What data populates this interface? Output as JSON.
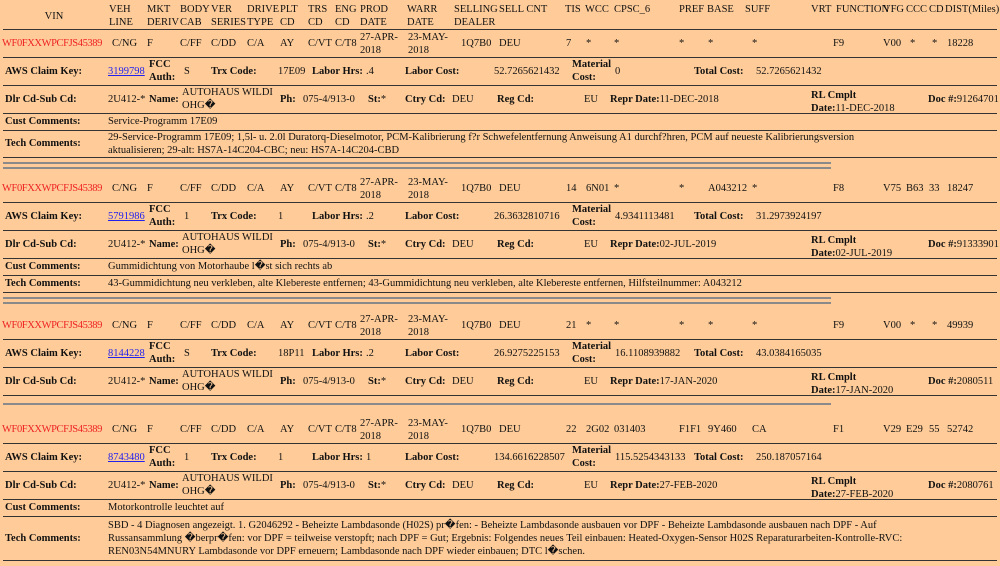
{
  "header": {
    "vin": "VIN",
    "veh_line": "VEH LINE",
    "mkt_deriv": "MKT DERIV",
    "body_cab": "BODY CAB",
    "ver_series": "VER SERIES",
    "drive_type": "DRIVE TYPE",
    "plt_cd": "PLT CD",
    "trs_cd": "TRS CD",
    "eng_cd": "ENG CD",
    "prod_date": "PROD DATE",
    "warr_date": "WARR DATE",
    "selling_dealer": "SELLING DEALER",
    "sell_cnt": "SELL CNT",
    "tis": "TIS",
    "wcc": "WCC",
    "cpsc": "CPSC_6",
    "pref": "PREF",
    "base": "BASE",
    "suff": "SUFF",
    "vrt": "VRT",
    "function": "FUNCTION",
    "vfg": "VFG",
    "ccc": "CCC",
    "cd": "CD",
    "dist": "DIST(Miles)"
  },
  "labels": {
    "aws_claim_key": "AWS Claim Key:",
    "fcc_auth": "FCC Auth:",
    "trx_code": "Trx Code:",
    "labor_hrs": "Labor Hrs:",
    "labor_cost": "Labor Cost:",
    "material_cost": "Material Cost:",
    "total_cost": "Total Cost:",
    "dlr_cd_sub_cd": "Dlr Cd-Sub Cd:",
    "name": "Name:",
    "ph": "Ph:",
    "st": "St:",
    "ctry_cd": "Ctry Cd:",
    "reg_cd": "Reg Cd:",
    "repr_date": "Repr Date:",
    "rl_cmplt_date": "RL Cmplt Date:",
    "doc": "Doc #:",
    "cust_comments": "Cust Comments:",
    "tech_comments": "Tech Comments:"
  },
  "colors": {
    "background": "#FFCC99",
    "vin": "#EE2222",
    "link": "#2222EE"
  },
  "records": [
    {
      "vin": "WF0FXXWPCFJS45389",
      "veh_line": "C/NG",
      "mkt_deriv": "F",
      "body_cab": "C/FF",
      "ver_series": "C/DD",
      "drive_type": "C/A",
      "plt_cd": "AY",
      "trs_cd": "C/VT",
      "eng_cd": "C/T8",
      "prod_date": "27-APR-2018",
      "warr_date": "23-MAY-2018",
      "selling_dealer": "1Q7B0",
      "sell_cnt": "DEU",
      "tis": "7",
      "wcc": "*",
      "cpsc": "*",
      "pref": "*",
      "base": "*",
      "suff": "*",
      "vrt": "F9",
      "function": "",
      "vfg": "V00",
      "ccc": "*",
      "cd": "*",
      "dist": "18228",
      "claim_key": "3199798",
      "fcc_auth": "S",
      "trx_code": "17E09",
      "labor_hrs": ".4",
      "labor_cost": "52.7265621432",
      "material_cost": "0",
      "total_cost": "52.7265621432",
      "dlr_cd": "2U412-*",
      "name": "AUTOHAUS WILDI OHG�",
      "ph": "075-4/913-0",
      "st": "*",
      "ctry_cd": "DEU",
      "reg_cd": "EU",
      "repr_date": "11-DEC-2018",
      "rl_cmplt_date": "11-DEC-2018",
      "doc": "91264701",
      "cust_comments": "Service-Programm 17E09",
      "tech_comments": "29-Service-Programm 17E09; 1,5l- u. 2.0l Duratorq-Dieselmotor, PCM-Kalibrierung f?r Schwefelentfernung Anweisung A1 durchf?hren, PCM auf neueste Kalibrierungsversion aktualisieren; 29-alt: HS7A-14C204-CBC; neu: HS7A-14C204-CBD"
    },
    {
      "vin": "WF0FXXWPCFJS45389",
      "veh_line": "C/NG",
      "mkt_deriv": "F",
      "body_cab": "C/FF",
      "ver_series": "C/DD",
      "drive_type": "C/A",
      "plt_cd": "AY",
      "trs_cd": "C/VT",
      "eng_cd": "C/T8",
      "prod_date": "27-APR-2018",
      "warr_date": "23-MAY-2018",
      "selling_dealer": "1Q7B0",
      "sell_cnt": "DEU",
      "tis": "14",
      "wcc": "6N01",
      "cpsc": "*",
      "pref": "*",
      "base": "A043212",
      "suff": "*",
      "vrt": "F8",
      "function": "",
      "vfg": "V75",
      "ccc": "B63",
      "cd": "33",
      "dist": "18247",
      "claim_key": "5791986",
      "fcc_auth": "1",
      "trx_code": "1",
      "labor_hrs": ".2",
      "labor_cost": "26.3632810716",
      "material_cost": "4.9341113481",
      "total_cost": "31.2973924197",
      "dlr_cd": "2U412-*",
      "name": "AUTOHAUS WILDI OHG�",
      "ph": "075-4/913-0",
      "st": "*",
      "ctry_cd": "DEU",
      "reg_cd": "EU",
      "repr_date": "02-JUL-2019",
      "rl_cmplt_date": "02-JUL-2019",
      "doc": "91333901",
      "cust_comments": "Gummidichtung von Motorhaube l�st sich rechts ab",
      "tech_comments": "43-Gummidichtung neu verkleben, alte Klebereste entfernen; 43-Gummidichtung neu verkleben, alte Klebereste entfernen, Hilfsteilnummer: A043212"
    },
    {
      "vin": "WF0FXXWPCFJS45389",
      "veh_line": "C/NG",
      "mkt_deriv": "F",
      "body_cab": "C/FF",
      "ver_series": "C/DD",
      "drive_type": "C/A",
      "plt_cd": "AY",
      "trs_cd": "C/VT",
      "eng_cd": "C/T8",
      "prod_date": "27-APR-2018",
      "warr_date": "23-MAY-2018",
      "selling_dealer": "1Q7B0",
      "sell_cnt": "DEU",
      "tis": "21",
      "wcc": "*",
      "cpsc": "*",
      "pref": "*",
      "base": "*",
      "suff": "*",
      "vrt": "F9",
      "function": "",
      "vfg": "V00",
      "ccc": "*",
      "cd": "*",
      "dist": "49939",
      "claim_key": "8144228",
      "fcc_auth": "S",
      "trx_code": "18P11",
      "labor_hrs": ".2",
      "labor_cost": "26.9275225153",
      "material_cost": "16.1108939882",
      "total_cost": "43.0384165035",
      "dlr_cd": "2U412-*",
      "name": "AUTOHAUS WILDI OHG�",
      "ph": "075-4/913-0",
      "st": "*",
      "ctry_cd": "DEU",
      "reg_cd": "EU",
      "repr_date": "17-JAN-2020",
      "rl_cmplt_date": "17-JAN-2020",
      "doc": "2080511"
    },
    {
      "vin": "WF0FXXWPCFJS45389",
      "veh_line": "C/NG",
      "mkt_deriv": "F",
      "body_cab": "C/FF",
      "ver_series": "C/DD",
      "drive_type": "C/A",
      "plt_cd": "AY",
      "trs_cd": "C/VT",
      "eng_cd": "C/T8",
      "prod_date": "27-APR-2018",
      "warr_date": "23-MAY-2018",
      "selling_dealer": "1Q7B0",
      "sell_cnt": "DEU",
      "tis": "22",
      "wcc": "2G02",
      "cpsc": "031403",
      "pref": "F1F1",
      "base": "9Y460",
      "suff": "CA",
      "vrt": "F1",
      "function": "",
      "vfg": "V29",
      "ccc": "E29",
      "cd": "55",
      "dist": "52742",
      "claim_key": "8743480",
      "fcc_auth": "1",
      "trx_code": "1",
      "labor_hrs": "1",
      "labor_cost": "134.6616228507",
      "material_cost": "115.5254343133",
      "total_cost": "250.187057164",
      "dlr_cd": "2U412-*",
      "name": "AUTOHAUS WILDI OHG�",
      "ph": "075-4/913-0",
      "st": "*",
      "ctry_cd": "DEU",
      "reg_cd": "EU",
      "repr_date": "27-FEB-2020",
      "rl_cmplt_date": "27-FEB-2020",
      "doc": "2080761",
      "cust_comments": "Motorkontrolle leuchtet auf",
      "tech_comments": "SBD - 4 Diagnosen angezeigt. 1. G2046292 - Beheizte Lambdasonde (H02S) pr�fen: - Beheizte Lambdasonde ausbauen vor DPF - Beheizte Lambdasonde ausbauen nach DPF - Auf Russansammlung �berpr�fen: vor DPF = teilweise verstopft; nach DPF = Gut; Ergebnis: Folgendes neues Teil einbauen: Heated-Oxygen-Sensor H02S Reparaturarbeiten-Kontrolle-RVC: REN03N54MNURY Lambdasonde vor DPF erneuern; Lambdasonde nach DPF wieder einbauen; DTC l�schen."
    }
  ]
}
